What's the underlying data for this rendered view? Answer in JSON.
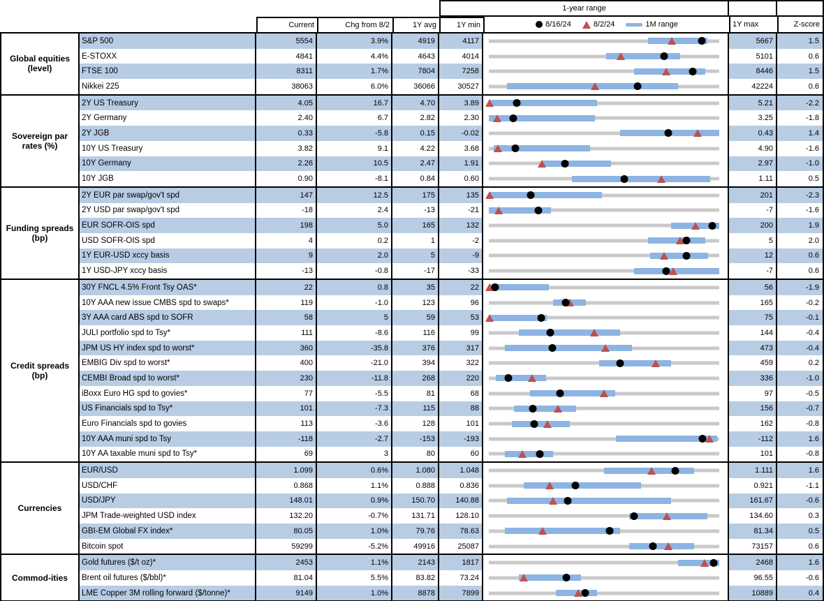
{
  "colors": {
    "stripe": "#b8cce4",
    "bar": "#8db4e2",
    "track": "#c9c9c9",
    "marker_black": "#000000",
    "marker_red": "#c0504d"
  },
  "header": {
    "range_title": "1-year range",
    "columns": [
      "Current",
      "Chg from 8/2",
      "1Y avg",
      "1Y min",
      "1Y max",
      "Z-score"
    ],
    "legend": [
      {
        "icon": "dot",
        "label": "8/16/24"
      },
      {
        "icon": "triangle",
        "label": "8/2/24"
      },
      {
        "icon": "bar",
        "label": "1M range"
      }
    ]
  },
  "chart_data": {
    "type": "table",
    "title": "1-year range",
    "legend": [
      "8/16/24 (black dot)",
      "8/2/24 (red triangle)",
      "1M range (blue bar)"
    ],
    "columns": [
      "Current",
      "Chg from 8/2",
      "1Y avg",
      "1Y min",
      "1Y max",
      "Z-score"
    ],
    "note": "dot/tri/bar are fractional positions along the 1Y min-max range track",
    "sections": [
      {
        "group": "Global equities (level)",
        "rows": [
          {
            "name": "S&P 500",
            "current": "5554",
            "chg": "3.9%",
            "avg": "4919",
            "min": "4117",
            "max": "5667",
            "z": "1.5",
            "bar": [
              0.69,
              0.95
            ],
            "dot": 0.925,
            "tri": 0.793
          },
          {
            "name": "E-STOXX",
            "current": "4841",
            "chg": "4.4%",
            "avg": "4643",
            "min": "4014",
            "max": "5101",
            "z": "0.6",
            "bar": [
              0.51,
              0.83
            ],
            "dot": 0.761,
            "tri": 0.573
          },
          {
            "name": "FTSE 100",
            "current": "8311",
            "chg": "1.7%",
            "avg": "7804",
            "min": "7258",
            "max": "8446",
            "z": "1.5",
            "bar": [
              0.63,
              0.94
            ],
            "dot": 0.886,
            "tri": 0.769
          },
          {
            "name": "Nikkei 225",
            "current": "38063",
            "chg": "6.0%",
            "avg": "36066",
            "min": "30527",
            "max": "42224",
            "z": "0.6",
            "bar": [
              0.08,
              0.82
            ],
            "dot": 0.644,
            "tri": 0.46
          }
        ]
      },
      {
        "group": "Sovereign par rates (%)",
        "rows": [
          {
            "name": "2Y US Treasury",
            "current": "4.05",
            "chg": "16.7",
            "avg": "4.70",
            "min": "3.89",
            "max": "5.21",
            "z": "-2.2",
            "bar": [
              0,
              0.47
            ],
            "dot": 0.121,
            "tri": 0.002
          },
          {
            "name": "2Y Germany",
            "current": "2.40",
            "chg": "6.7",
            "avg": "2.82",
            "min": "2.30",
            "max": "3.25",
            "z": "-1.8",
            "bar": [
              0,
              0.46
            ],
            "dot": 0.105,
            "tri": 0.035
          },
          {
            "name": "2Y JGB",
            "current": "0.33",
            "chg": "-5.8",
            "avg": "0.15",
            "min": "-0.02",
            "max": "0.43",
            "z": "1.4",
            "bar": [
              0.57,
              1
            ],
            "dot": 0.778,
            "tri": 0.907
          },
          {
            "name": "10Y US Treasury",
            "current": "3.82",
            "chg": "9.1",
            "avg": "4.22",
            "min": "3.68",
            "max": "4.90",
            "z": "-1.6",
            "bar": [
              0.02,
              0.44
            ],
            "dot": 0.115,
            "tri": 0.04
          },
          {
            "name": "10Y Germany",
            "current": "2.26",
            "chg": "10.5",
            "avg": "2.47",
            "min": "1.91",
            "max": "2.97",
            "z": "-1.0",
            "bar": [
              0.23,
              0.53
            ],
            "dot": 0.33,
            "tri": 0.231
          },
          {
            "name": "10Y JGB",
            "current": "0.90",
            "chg": "-8.1",
            "avg": "0.84",
            "min": "0.60",
            "max": "1.11",
            "z": "0.5",
            "bar": [
              0.36,
              0.96
            ],
            "dot": 0.588,
            "tri": 0.747
          }
        ]
      },
      {
        "group": "Funding spreads (bp)",
        "rows": [
          {
            "name": "2Y EUR par swap/gov't spd",
            "current": "147",
            "chg": "12.5",
            "avg": "175",
            "min": "135",
            "max": "201",
            "z": "-2.3",
            "bar": [
              0,
              0.49
            ],
            "dot": 0.182,
            "tri": 0.002
          },
          {
            "name": "2Y USD par swap/gov't spd",
            "current": "-18",
            "chg": "2.4",
            "avg": "-13",
            "min": "-21",
            "max": "-7",
            "z": "-1.6",
            "bar": [
              0,
              0.27
            ],
            "dot": 0.214,
            "tri": 0.043
          },
          {
            "name": "EUR SOFR-OIS spd",
            "current": "198",
            "chg": "5.0",
            "avg": "165",
            "min": "132",
            "max": "200",
            "z": "1.9",
            "bar": [
              0.79,
              1
            ],
            "dot": 0.971,
            "tri": 0.897
          },
          {
            "name": "USD SOFR-OIS spd",
            "current": "4",
            "chg": "0.2",
            "avg": "1",
            "min": "-2",
            "max": "5",
            "z": "2.0",
            "bar": [
              0.69,
              0.94
            ],
            "dot": 0.857,
            "tri": 0.829
          },
          {
            "name": "1Y EUR-USD xccy basis",
            "current": "9",
            "chg": "2.0",
            "avg": "5",
            "min": "-9",
            "max": "12",
            "z": "0.6",
            "bar": [
              0.7,
              0.95
            ],
            "dot": 0.857,
            "tri": 0.762
          },
          {
            "name": "1Y USD-JPY xccy basis",
            "current": "-13",
            "chg": "-0.8",
            "avg": "-17",
            "min": "-33",
            "max": "-7",
            "z": "0.6",
            "bar": [
              0.63,
              1
            ],
            "dot": 0.769,
            "tri": 0.8
          }
        ]
      },
      {
        "group": "Credit spreads (bp)",
        "rows": [
          {
            "name": "30Y FNCL 4.5% Front Tsy OAS*",
            "current": "22",
            "chg": "0.8",
            "avg": "35",
            "min": "22",
            "max": "56",
            "z": "-1.9",
            "bar": [
              0,
              0.26
            ],
            "dot": 0.028,
            "tri": 0.002
          },
          {
            "name": "10Y AAA new issue CMBS spd to swaps*",
            "current": "119",
            "chg": "-1.0",
            "avg": "123",
            "min": "96",
            "max": "165",
            "z": "-0.2",
            "bar": [
              0.28,
              0.42
            ],
            "dot": 0.333,
            "tri": 0.35
          },
          {
            "name": "3Y AAA card ABS spd to SOFR",
            "current": "58",
            "chg": "5",
            "avg": "59",
            "min": "53",
            "max": "75",
            "z": "-0.1",
            "bar": [
              0,
              0.25
            ],
            "dot": 0.227,
            "tri": 0.002
          },
          {
            "name": "JULI portfolio spd to Tsy*",
            "current": "111",
            "chg": "-8.6",
            "avg": "116",
            "min": "99",
            "max": "144",
            "z": "-0.4",
            "bar": [
              0.13,
              0.57
            ],
            "dot": 0.267,
            "tri": 0.458
          },
          {
            "name": "JPM US HY index spd to worst*",
            "current": "360",
            "chg": "-35.8",
            "avg": "376",
            "min": "317",
            "max": "473",
            "z": "-0.4",
            "bar": [
              0.07,
              0.62
            ],
            "dot": 0.276,
            "tri": 0.505
          },
          {
            "name": "EMBIG Div spd to worst*",
            "current": "400",
            "chg": "-21.0",
            "avg": "394",
            "min": "322",
            "max": "459",
            "z": "0.2",
            "bar": [
              0.48,
              0.79
            ],
            "dot": 0.569,
            "tri": 0.723
          },
          {
            "name": "CEMBI Broad spd to worst*",
            "current": "230",
            "chg": "-11.8",
            "avg": "268",
            "min": "220",
            "max": "336",
            "z": "-1.0",
            "bar": [
              0.03,
              0.25
            ],
            "dot": 0.086,
            "tri": 0.188
          },
          {
            "name": "iBoxx Euro HG spd to govies*",
            "current": "77",
            "chg": "-5.5",
            "avg": "81",
            "min": "68",
            "max": "97",
            "z": "-0.5",
            "bar": [
              0.18,
              0.55
            ],
            "dot": 0.31,
            "tri": 0.5
          },
          {
            "name": "US Financials spd to Tsy*",
            "current": "101",
            "chg": "-7.3",
            "avg": "115",
            "min": "88",
            "max": "156",
            "z": "-0.7",
            "bar": [
              0.11,
              0.38
            ],
            "dot": 0.191,
            "tri": 0.299
          },
          {
            "name": "Euro Financials spd to govies",
            "current": "113",
            "chg": "-3.6",
            "avg": "128",
            "min": "101",
            "max": "162",
            "z": "-0.8",
            "bar": [
              0.1,
              0.35
            ],
            "dot": 0.197,
            "tri": 0.256
          },
          {
            "name": "10Y AAA muni spd to Tsy",
            "current": "-118",
            "chg": "-2.7",
            "avg": "-153",
            "min": "-193",
            "max": "-112",
            "z": "1.6",
            "bar": [
              0.55,
              0.99
            ],
            "dot": 0.926,
            "tri": 0.959
          },
          {
            "name": "10Y AA taxable muni spd to Tsy*",
            "current": "69",
            "chg": "3",
            "avg": "80",
            "min": "60",
            "max": "101",
            "z": "-0.8",
            "bar": [
              0.07,
              0.28
            ],
            "dot": 0.22,
            "tri": 0.146
          }
        ]
      },
      {
        "group": "Currencies",
        "rows": [
          {
            "name": "EUR/USD",
            "current": "1.099",
            "chg": "0.6%",
            "avg": "1.080",
            "min": "1.048",
            "max": "1.111",
            "z": "1.6",
            "bar": [
              0.5,
              0.89
            ],
            "dot": 0.81,
            "tri": 0.705
          },
          {
            "name": "USD/CHF",
            "current": "0.868",
            "chg": "1.1%",
            "avg": "0.888",
            "min": "0.836",
            "max": "0.921",
            "z": "-1.1",
            "bar": [
              0.15,
              0.66
            ],
            "dot": 0.376,
            "tri": 0.265
          },
          {
            "name": "USD/JPY",
            "current": "148.01",
            "chg": "0.9%",
            "avg": "150.70",
            "min": "140.88",
            "max": "161.67",
            "z": "-0.6",
            "bar": [
              0.08,
              0.79
            ],
            "dot": 0.343,
            "tri": 0.279
          },
          {
            "name": "JPM Trade-weighted USD index",
            "current": "132.20",
            "chg": "-0.7%",
            "avg": "131.71",
            "min": "128.10",
            "max": "134.60",
            "z": "0.3",
            "bar": [
              0.61,
              0.95
            ],
            "dot": 0.631,
            "tri": 0.774
          },
          {
            "name": "GBI-EM Global FX index*",
            "current": "80.05",
            "chg": "1.0%",
            "avg": "79.76",
            "min": "78.63",
            "max": "81.34",
            "z": "0.5",
            "bar": [
              0.07,
              0.57
            ],
            "dot": 0.524,
            "tri": 0.232
          },
          {
            "name": "Bitcoin spot",
            "current": "59299",
            "chg": "-5.2%",
            "avg": "49916",
            "min": "25087",
            "max": "73157",
            "z": "0.6",
            "bar": [
              0.61,
              0.89
            ],
            "dot": 0.712,
            "tri": 0.779
          }
        ]
      },
      {
        "group": "Commod-ities",
        "rows": [
          {
            "name": "Gold futures ($/t oz)*",
            "current": "2453",
            "chg": "1.1%",
            "avg": "2143",
            "min": "1817",
            "max": "2468",
            "z": "1.6",
            "bar": [
              0.82,
              1
            ],
            "dot": 0.977,
            "tri": 0.936
          },
          {
            "name": "Brent oil futures ($/bbl)*",
            "current": "81.04",
            "chg": "5.5%",
            "avg": "83.82",
            "min": "73.24",
            "max": "96.55",
            "z": "-0.6",
            "bar": [
              0.13,
              0.4
            ],
            "dot": 0.335,
            "tri": 0.153
          },
          {
            "name": "LME Copper 3M rolling forward ($/tonne)*",
            "current": "9149",
            "chg": "1.0%",
            "avg": "8878",
            "min": "7899",
            "max": "10889",
            "z": "0.4",
            "bar": [
              0.29,
              0.47
            ],
            "dot": 0.418,
            "tri": 0.388
          }
        ]
      }
    ]
  }
}
